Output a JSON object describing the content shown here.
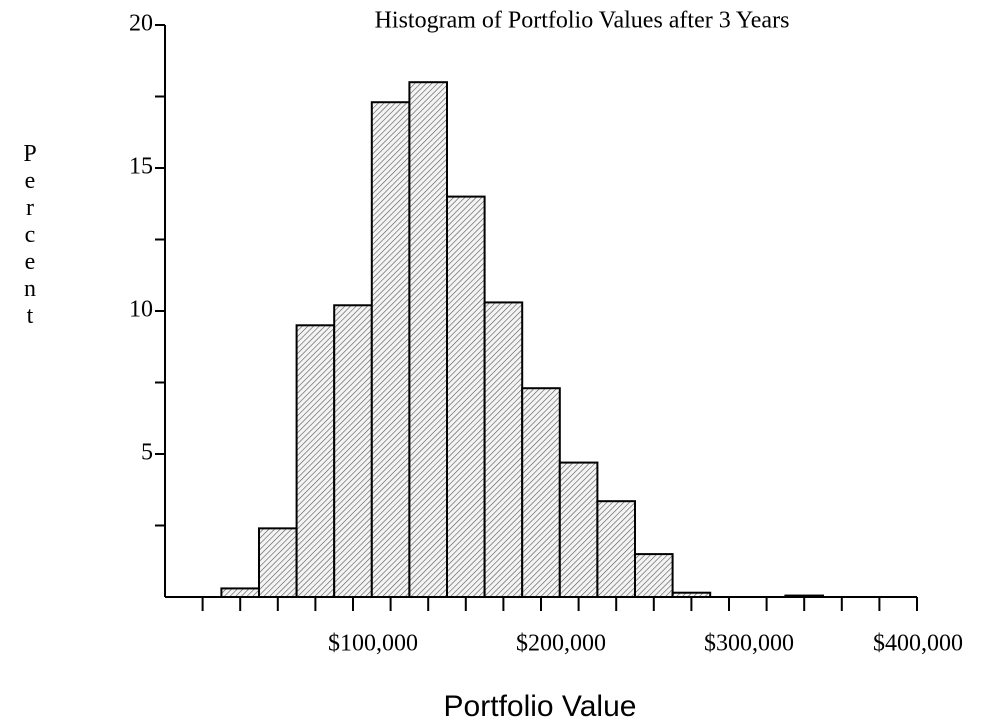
{
  "chart_data": {
    "type": "histogram",
    "title": "Histogram of Portfolio Values after 3 Years",
    "x_label": "Portfolio Value",
    "y_label": "Percent",
    "bins": [
      30000,
      50000,
      70000,
      90000,
      110000,
      130000,
      150000,
      170000,
      190000,
      210000,
      230000,
      250000,
      270000,
      290000,
      310000,
      330000,
      350000
    ],
    "values": [
      0.3,
      2.4,
      9.5,
      10.2,
      17.3,
      18.0,
      14.0,
      10.3,
      7.3,
      4.7,
      3.35,
      1.5,
      0.15,
      0,
      0,
      0.05
    ],
    "color": "#e8e8e8",
    "hatch": true,
    "xlim": [
      0,
      400000
    ],
    "xticks": [
      {
        "value": 100000,
        "label": "$100,000"
      },
      {
        "value": 200000,
        "label": "$200,000"
      },
      {
        "value": 300000,
        "label": "$300,000"
      },
      {
        "value": 400000,
        "label": "$400,000"
      }
    ],
    "minor_xticks": [
      20000,
      40000,
      60000,
      80000,
      120000,
      140000,
      160000,
      180000,
      220000,
      240000,
      260000,
      280000,
      320000,
      340000,
      360000,
      380000
    ],
    "ylim": [
      0,
      20
    ],
    "yticks": [
      5,
      10,
      15,
      20
    ],
    "minor_yticks": [
      2.5,
      7.5,
      12.5,
      17.5
    ],
    "grid": false
  }
}
